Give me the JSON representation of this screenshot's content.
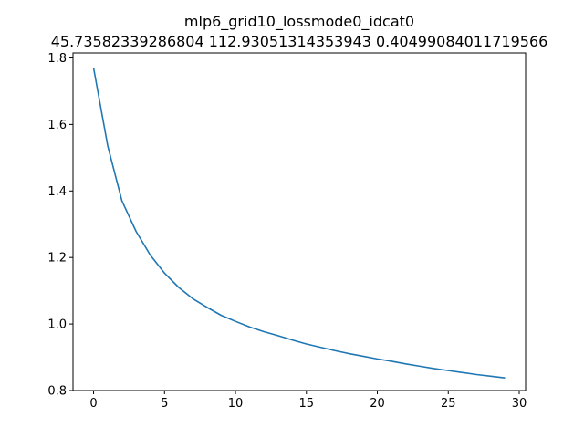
{
  "chart_data": {
    "type": "line",
    "title": "mlp6_grid10_lossmode0_idcat0",
    "subtitle": "45.73582339286804 112.93051314353943 0.40499084011719566",
    "xlabel": "",
    "ylabel": "",
    "xlim": [
      -1.45,
      30.45
    ],
    "ylim": [
      0.8,
      1.815
    ],
    "grid": false,
    "x_ticks": [
      0,
      5,
      10,
      15,
      20,
      25,
      30
    ],
    "x_tick_labels": [
      "0",
      "5",
      "10",
      "15",
      "20",
      "25",
      "30"
    ],
    "y_ticks": [
      0.8,
      1.0,
      1.2,
      1.4,
      1.6,
      1.8
    ],
    "y_tick_labels": [
      "0.8",
      "1.0",
      "1.2",
      "1.4",
      "1.6",
      "1.8"
    ],
    "series": [
      {
        "color": "#1f77b4",
        "x": [
          0,
          1,
          2,
          3,
          4,
          5,
          6,
          7,
          8,
          9,
          10,
          11,
          12,
          13,
          14,
          15,
          16,
          17,
          18,
          19,
          20,
          21,
          22,
          23,
          24,
          25,
          26,
          27,
          28,
          29
        ],
        "values": [
          1.77,
          1.535,
          1.37,
          1.278,
          1.207,
          1.153,
          1.11,
          1.076,
          1.05,
          1.026,
          1.008,
          0.991,
          0.977,
          0.965,
          0.952,
          0.94,
          0.93,
          0.92,
          0.911,
          0.903,
          0.895,
          0.888,
          0.88,
          0.873,
          0.866,
          0.86,
          0.854,
          0.848,
          0.843,
          0.838
        ]
      }
    ]
  }
}
